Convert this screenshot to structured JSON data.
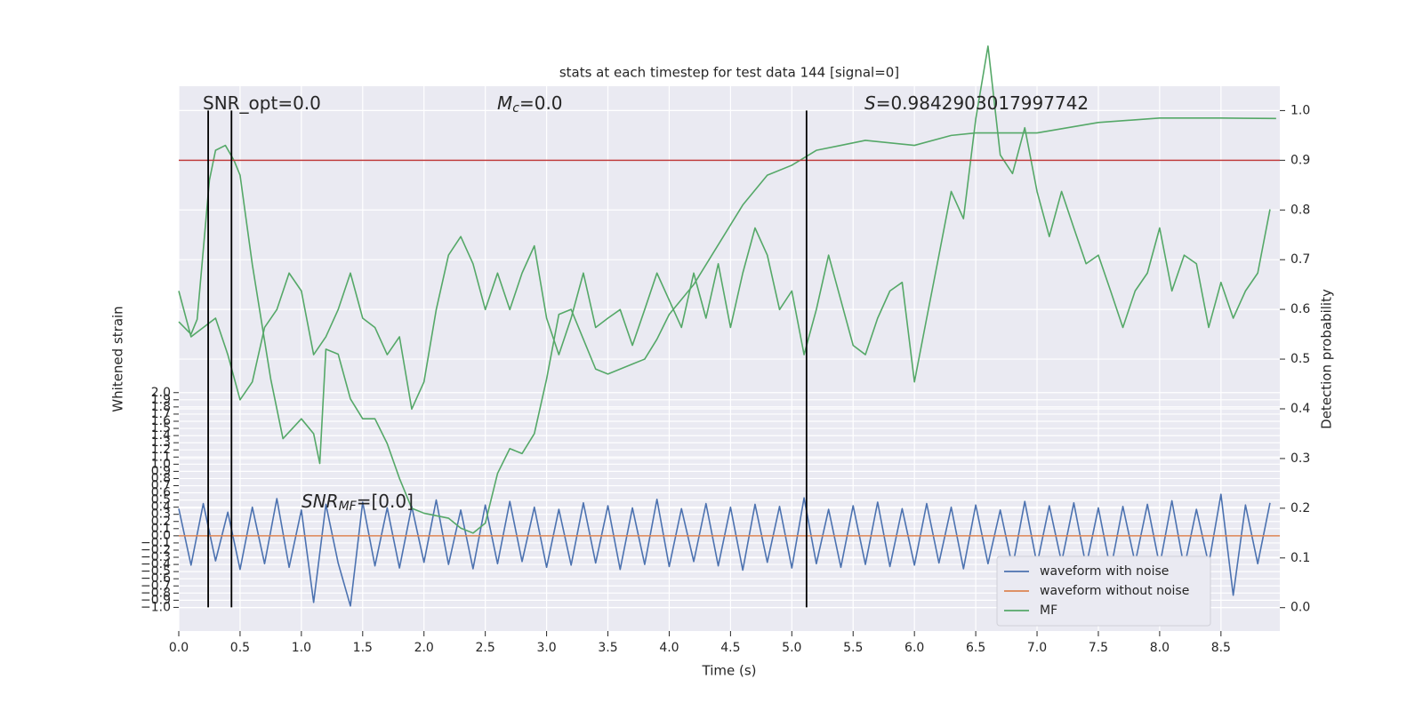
{
  "chart_data": {
    "type": "line",
    "title": "stats at each timestep for test data 144 [signal=0]",
    "xlabel": "Time (s)",
    "ylabel": "Whitened strain",
    "y2label": "Detection probability",
    "annotations": [
      [
        "SNR_opt=0.0"
      ],
      [
        "M",
        "c",
        "=0.0"
      ],
      [
        "S",
        "=0.9842903017997742"
      ],
      [
        "SNR",
        "MF",
        "=[0.0]"
      ]
    ],
    "grid": true,
    "background": "#eaeaf2",
    "legend": "lower right",
    "xlim": [
      0,
      8.98
    ],
    "ylim": [
      -1.33,
      6.28
    ],
    "y2lim": [
      -0.047,
      1.049
    ],
    "xticks": [
      {
        "value": 0,
        "label": "0.0"
      },
      {
        "value": 0.5,
        "label": "0.5"
      },
      {
        "value": 1,
        "label": "1.0"
      },
      {
        "value": 1.5,
        "label": "1.5"
      },
      {
        "value": 2,
        "label": "2.0"
      },
      {
        "value": 2.5,
        "label": "2.5"
      },
      {
        "value": 3,
        "label": "3.0"
      },
      {
        "value": 3.5,
        "label": "3.5"
      },
      {
        "value": 4,
        "label": "4.0"
      },
      {
        "value": 4.5,
        "label": "4.5"
      },
      {
        "value": 5,
        "label": "5.0"
      },
      {
        "value": 5.5,
        "label": "5.5"
      },
      {
        "value": 6,
        "label": "6.0"
      },
      {
        "value": 6.5,
        "label": "6.5"
      },
      {
        "value": 7,
        "label": "7.0"
      },
      {
        "value": 7.5,
        "label": "7.5"
      },
      {
        "value": 8,
        "label": "8.0"
      },
      {
        "value": 8.5,
        "label": "8.5"
      }
    ],
    "yticks": [
      {
        "value": -1,
        "label": "−1.0"
      },
      {
        "value": -0.9,
        "label": "−0.9"
      },
      {
        "value": -0.8,
        "label": "−0.8"
      },
      {
        "value": -0.7,
        "label": "−0.7"
      },
      {
        "value": -0.6,
        "label": "−0.6"
      },
      {
        "value": -0.5,
        "label": "−0.5"
      },
      {
        "value": -0.4,
        "label": "−0.4"
      },
      {
        "value": -0.3,
        "label": "−0.3"
      },
      {
        "value": -0.2,
        "label": "−0.2"
      },
      {
        "value": -0.1,
        "label": "−0.1"
      },
      {
        "value": 0,
        "label": "0.0"
      },
      {
        "value": 0.1,
        "label": "0.1"
      },
      {
        "value": 0.2,
        "label": "0.2"
      },
      {
        "value": 0.3,
        "label": "0.3"
      },
      {
        "value": 0.4,
        "label": "0.4"
      },
      {
        "value": 0.5,
        "label": "0.5"
      },
      {
        "value": 0.6,
        "label": "0.6"
      },
      {
        "value": 0.7,
        "label": "0.7"
      },
      {
        "value": 0.8,
        "label": "0.8"
      },
      {
        "value": 0.9,
        "label": "0.9"
      },
      {
        "value": 1,
        "label": "1.0"
      },
      {
        "value": 1.1,
        "label": "1.1"
      },
      {
        "value": 1.2,
        "label": "1.2"
      },
      {
        "value": 1.3,
        "label": "1.3"
      },
      {
        "value": 1.4,
        "label": "1.4"
      },
      {
        "value": 1.5,
        "label": "1.5"
      },
      {
        "value": 1.6,
        "label": "1.6"
      },
      {
        "value": 1.7,
        "label": "1.7"
      },
      {
        "value": 1.8,
        "label": "1.8"
      },
      {
        "value": 1.9,
        "label": "1.9"
      },
      {
        "value": 2,
        "label": "2.0"
      }
    ],
    "y2ticks": [
      {
        "value": 0,
        "label": "0.0"
      },
      {
        "value": 0.1,
        "label": "0.1"
      },
      {
        "value": 0.2,
        "label": "0.2"
      },
      {
        "value": 0.3,
        "label": "0.3"
      },
      {
        "value": 0.4,
        "label": "0.4"
      },
      {
        "value": 0.5,
        "label": "0.5"
      },
      {
        "value": 0.6,
        "label": "0.6"
      },
      {
        "value": 0.7,
        "label": "0.7"
      },
      {
        "value": 0.8,
        "label": "0.8"
      },
      {
        "value": 0.9,
        "label": "0.9"
      },
      {
        "value": 1,
        "label": "1.0"
      }
    ],
    "vlines": [
      0.24,
      0.43,
      5.12
    ],
    "vline_color": "#000000",
    "hline": 0.9,
    "hline_color": "#c03d3e",
    "x": [
      0,
      0.1,
      0.2,
      0.3,
      0.4,
      0.5,
      0.6,
      0.7,
      0.8,
      0.9,
      1,
      1.1,
      1.2,
      1.3,
      1.4,
      1.5,
      1.6,
      1.7,
      1.8,
      1.9,
      2,
      2.1,
      2.2,
      2.3,
      2.4,
      2.5,
      2.6,
      2.7,
      2.8,
      2.9,
      3,
      3.1,
      3.2,
      3.3,
      3.4,
      3.5,
      3.6,
      3.7,
      3.8,
      3.9,
      4,
      4.1,
      4.2,
      4.3,
      4.4,
      4.5,
      4.6,
      4.7,
      4.8,
      4.9,
      5,
      5.1,
      5.2,
      5.3,
      5.4,
      5.5,
      5.6,
      5.7,
      5.8,
      5.9,
      6,
      6.1,
      6.2,
      6.3,
      6.4,
      6.5,
      6.6,
      6.7,
      6.8,
      6.9,
      7,
      7.1,
      7.2,
      7.3,
      7.4,
      7.5,
      7.6,
      7.7,
      7.8,
      7.9,
      8,
      8.1,
      8.2,
      8.3,
      8.4,
      8.5,
      8.6,
      8.7,
      8.8,
      8.9
    ],
    "series": [
      {
        "name": "waveform with noise",
        "color": "#4c72b0",
        "values": [
          0.38,
          -0.41,
          0.45,
          -0.35,
          0.33,
          -0.47,
          0.4,
          -0.39,
          0.52,
          -0.44,
          0.36,
          -0.93,
          0.44,
          -0.38,
          -0.98,
          0.47,
          -0.42,
          0.39,
          -0.45,
          0.41,
          -0.37,
          0.5,
          -0.4,
          0.36,
          -0.46,
          0.43,
          -0.39,
          0.48,
          -0.36,
          0.4,
          -0.44,
          0.37,
          -0.41,
          0.46,
          -0.38,
          0.42,
          -0.47,
          0.39,
          -0.4,
          0.51,
          -0.43,
          0.38,
          -0.36,
          0.45,
          -0.42,
          0.4,
          -0.48,
          0.44,
          -0.37,
          0.41,
          -0.45,
          0.53,
          -0.39,
          0.37,
          -0.44,
          0.42,
          -0.4,
          0.47,
          -0.43,
          0.38,
          -0.41,
          0.45,
          -0.38,
          0.4,
          -0.46,
          0.43,
          -0.39,
          0.36,
          -0.44,
          0.48,
          -0.4,
          0.42,
          -0.37,
          0.46,
          -0.43,
          0.39,
          -0.48,
          0.41,
          -0.38,
          0.44,
          -0.42,
          0.49,
          -0.45,
          0.37,
          -0.4,
          0.58,
          -0.83,
          0.43,
          -0.39,
          0.46
        ]
      },
      {
        "name": "waveform without noise",
        "color": "#dd8452",
        "x": [
          0,
          8.98
        ],
        "values": [
          0,
          0
        ]
      },
      {
        "name": "MF",
        "color": "#55a868",
        "values": [
          3.42,
          2.78,
          2.91,
          3.04,
          2.53,
          1.9,
          2.15,
          2.91,
          3.16,
          3.67,
          3.42,
          2.53,
          2.78,
          3.16,
          3.67,
          3.04,
          2.91,
          2.53,
          2.78,
          1.77,
          2.15,
          3.16,
          3.92,
          4.18,
          3.8,
          3.16,
          3.67,
          3.16,
          3.67,
          4.05,
          3.04,
          2.53,
          3.04,
          3.67,
          2.91,
          3.04,
          3.16,
          2.66,
          3.16,
          3.67,
          3.29,
          2.91,
          3.67,
          3.04,
          3.8,
          2.91,
          3.67,
          4.3,
          3.92,
          3.16,
          3.42,
          2.53,
          3.16,
          3.92,
          3.29,
          2.66,
          2.53,
          3.04,
          3.42,
          3.54,
          2.15,
          3.04,
          3.92,
          4.81,
          4.43,
          5.82,
          6.84,
          5.32,
          5.06,
          5.7,
          4.81,
          4.18,
          4.81,
          4.3,
          3.8,
          3.92,
          3.42,
          2.91,
          3.42,
          3.67,
          4.3,
          3.42,
          3.92,
          3.8,
          2.91,
          3.54,
          3.04,
          3.42,
          3.67,
          4.56
        ]
      },
      {
        "color": "#55a868",
        "axis": "y2",
        "x": [
          0,
          0.1,
          0.15,
          0.25,
          0.3,
          0.38,
          0.45,
          0.5,
          0.6,
          0.75,
          0.85,
          1.0,
          1.1,
          1.15,
          1.2,
          1.3,
          1.4,
          1.5,
          1.6,
          1.7,
          1.8,
          1.9,
          2.0,
          2.2,
          2.3,
          2.4,
          2.5,
          2.6,
          2.7,
          2.8,
          2.9,
          3.0,
          3.1,
          3.2,
          3.3,
          3.4,
          3.5,
          3.6,
          3.7,
          3.8,
          3.9,
          4.0,
          4.2,
          4.4,
          4.6,
          4.8,
          5.0,
          5.2,
          5.4,
          5.6,
          6.0,
          6.3,
          6.5,
          7.0,
          7.5,
          8.0,
          8.5,
          8.95
        ],
        "values": [
          0.575,
          0.55,
          0.58,
          0.86,
          0.92,
          0.93,
          0.9,
          0.87,
          0.69,
          0.46,
          0.34,
          0.38,
          0.35,
          0.29,
          0.52,
          0.51,
          0.42,
          0.38,
          0.38,
          0.33,
          0.26,
          0.2,
          0.19,
          0.18,
          0.16,
          0.15,
          0.17,
          0.27,
          0.32,
          0.31,
          0.35,
          0.46,
          0.59,
          0.6,
          0.54,
          0.48,
          0.47,
          0.48,
          0.49,
          0.5,
          0.54,
          0.59,
          0.65,
          0.73,
          0.81,
          0.87,
          0.89,
          0.92,
          0.93,
          0.94,
          0.93,
          0.95,
          0.955,
          0.955,
          0.976,
          0.985,
          0.985,
          0.984
        ]
      }
    ]
  }
}
